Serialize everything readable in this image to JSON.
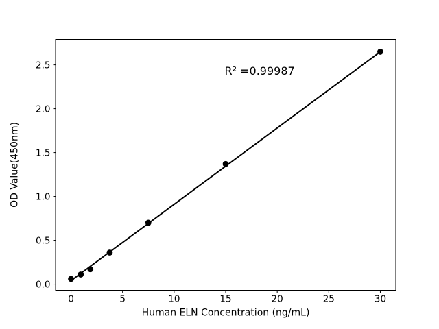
{
  "figure": {
    "background": "#ffffff"
  },
  "chart_data": {
    "type": "scatter",
    "title": "",
    "xlabel": "Human ELN Concentration (ng/mL)",
    "ylabel": "OD Value(450nm)",
    "x": [
      0,
      0.94,
      1.88,
      3.75,
      7.5,
      15,
      30
    ],
    "y": [
      0.06,
      0.11,
      0.17,
      0.36,
      0.7,
      1.37,
      2.65
    ],
    "fit_line": {
      "slope": 0.087,
      "intercept": 0.04,
      "x_start": 0,
      "x_end": 30
    },
    "annotation": {
      "text": "R² =0.99987",
      "x": 18.3,
      "y": 2.43
    },
    "x_ticks": [
      0,
      5,
      10,
      15,
      20,
      25,
      30
    ],
    "x_tick_labels": [
      "0",
      "5",
      "10",
      "15",
      "20",
      "25",
      "30"
    ],
    "y_ticks": [
      0.0,
      0.5,
      1.0,
      1.5,
      2.0,
      2.5
    ],
    "y_tick_labels": [
      "0.0",
      "0.5",
      "1.0",
      "1.5",
      "2.0",
      "2.5"
    ],
    "xlim": [
      -1.5,
      31.5
    ],
    "ylim": [
      -0.07,
      2.79
    ],
    "grid": false,
    "legend": null,
    "marker_color": "#000000",
    "line_color": "#000000",
    "axis_color": "#000000",
    "background_color": "#ffffff"
  }
}
